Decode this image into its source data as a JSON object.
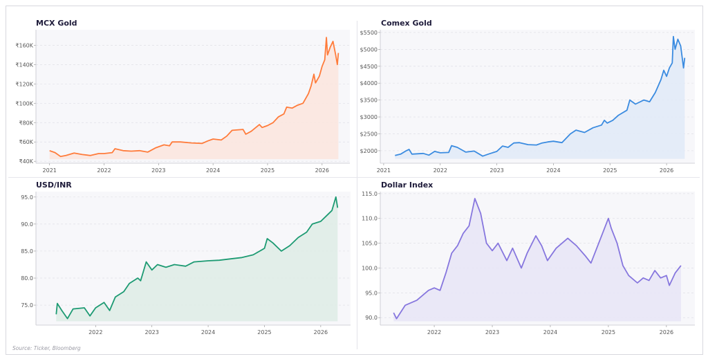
{
  "source": "Source: Ticker, Bloomberg",
  "chart_data": [
    {
      "type": "area",
      "title": "MCX Gold",
      "color": "#ff7b3a",
      "fill": "#fbe6df",
      "xlim": [
        2020.75,
        2026.51
      ],
      "ylim": [
        38,
        176
      ],
      "x_ticks": [
        2021,
        2022,
        2023,
        2024,
        2025,
        2026
      ],
      "x_tick_labels": [
        "2021",
        "2022",
        "2023",
        "2024",
        "2025",
        "2026"
      ],
      "y_ticks": [
        40,
        60,
        80,
        100,
        120,
        140,
        160
      ],
      "y_tick_labels": [
        "₹40K",
        "₹60K",
        "₹80K",
        "₹100K",
        "₹120K",
        "₹140K",
        "₹160K"
      ],
      "unit": "thousand INR",
      "points": [
        [
          2021.0,
          51
        ],
        [
          2021.1,
          49
        ],
        [
          2021.2,
          45
        ],
        [
          2021.3,
          46
        ],
        [
          2021.45,
          48.5
        ],
        [
          2021.6,
          47
        ],
        [
          2021.75,
          46
        ],
        [
          2021.9,
          48
        ],
        [
          2022.0,
          48
        ],
        [
          2022.15,
          49
        ],
        [
          2022.2,
          53
        ],
        [
          2022.35,
          51
        ],
        [
          2022.5,
          50.5
        ],
        [
          2022.65,
          51
        ],
        [
          2022.8,
          49.5
        ],
        [
          2022.95,
          54
        ],
        [
          2023.1,
          57
        ],
        [
          2023.2,
          56
        ],
        [
          2023.25,
          60
        ],
        [
          2023.4,
          60
        ],
        [
          2023.6,
          59
        ],
        [
          2023.8,
          58.5
        ],
        [
          2023.9,
          61
        ],
        [
          2024.0,
          63
        ],
        [
          2024.15,
          62
        ],
        [
          2024.25,
          66
        ],
        [
          2024.35,
          72
        ],
        [
          2024.55,
          73
        ],
        [
          2024.6,
          68
        ],
        [
          2024.7,
          71
        ],
        [
          2024.85,
          78
        ],
        [
          2024.9,
          75
        ],
        [
          2025.0,
          77
        ],
        [
          2025.1,
          80
        ],
        [
          2025.2,
          86
        ],
        [
          2025.3,
          89
        ],
        [
          2025.35,
          96
        ],
        [
          2025.45,
          95
        ],
        [
          2025.55,
          98
        ],
        [
          2025.65,
          100
        ],
        [
          2025.75,
          110
        ],
        [
          2025.8,
          118
        ],
        [
          2025.85,
          130
        ],
        [
          2025.88,
          121
        ],
        [
          2025.95,
          128
        ],
        [
          2026.0,
          138
        ],
        [
          2026.05,
          145
        ],
        [
          2026.08,
          168
        ],
        [
          2026.1,
          150
        ],
        [
          2026.15,
          158
        ],
        [
          2026.2,
          164
        ],
        [
          2026.25,
          150
        ],
        [
          2026.28,
          140
        ],
        [
          2026.3,
          152
        ]
      ]
    },
    {
      "type": "area",
      "title": "Comex Gold",
      "color": "#3a8be0",
      "fill": "#e1eaf7",
      "xlim": [
        2020.94,
        2026.5
      ],
      "ylim": [
        1630,
        5580
      ],
      "x_ticks": [
        2021,
        2022,
        2023,
        2024,
        2025,
        2026
      ],
      "x_tick_labels": [
        "2021",
        "2022",
        "2023",
        "2024",
        "2025",
        "2026"
      ],
      "y_ticks": [
        2000,
        2500,
        3000,
        3500,
        4000,
        4500,
        5000,
        5500
      ],
      "y_tick_labels": [
        "$2000",
        "$2500",
        "$3000",
        "$3500",
        "$4000",
        "$4500",
        "$5000",
        "$5500"
      ],
      "unit": "USD",
      "points": [
        [
          2021.2,
          1860
        ],
        [
          2021.3,
          1900
        ],
        [
          2021.4,
          2000
        ],
        [
          2021.45,
          2040
        ],
        [
          2021.5,
          1900
        ],
        [
          2021.7,
          1920
        ],
        [
          2021.8,
          1870
        ],
        [
          2021.9,
          1980
        ],
        [
          2022.0,
          1940
        ],
        [
          2022.15,
          1950
        ],
        [
          2022.2,
          2150
        ],
        [
          2022.3,
          2100
        ],
        [
          2022.45,
          1960
        ],
        [
          2022.6,
          1990
        ],
        [
          2022.75,
          1840
        ],
        [
          2022.85,
          1900
        ],
        [
          2023.0,
          1980
        ],
        [
          2023.1,
          2140
        ],
        [
          2023.2,
          2100
        ],
        [
          2023.3,
          2230
        ],
        [
          2023.4,
          2240
        ],
        [
          2023.55,
          2180
        ],
        [
          2023.7,
          2170
        ],
        [
          2023.8,
          2230
        ],
        [
          2023.9,
          2260
        ],
        [
          2024.0,
          2280
        ],
        [
          2024.15,
          2240
        ],
        [
          2024.3,
          2500
        ],
        [
          2024.4,
          2610
        ],
        [
          2024.55,
          2540
        ],
        [
          2024.7,
          2680
        ],
        [
          2024.85,
          2760
        ],
        [
          2024.9,
          2900
        ],
        [
          2024.95,
          2820
        ],
        [
          2025.05,
          2900
        ],
        [
          2025.15,
          3050
        ],
        [
          2025.3,
          3200
        ],
        [
          2025.35,
          3500
        ],
        [
          2025.45,
          3380
        ],
        [
          2025.6,
          3500
        ],
        [
          2025.7,
          3450
        ],
        [
          2025.8,
          3720
        ],
        [
          2025.9,
          4100
        ],
        [
          2025.95,
          4380
        ],
        [
          2026.0,
          4200
        ],
        [
          2026.05,
          4450
        ],
        [
          2026.1,
          4600
        ],
        [
          2026.12,
          5380
        ],
        [
          2026.15,
          5000
        ],
        [
          2026.2,
          5300
        ],
        [
          2026.25,
          5100
        ],
        [
          2026.3,
          4450
        ],
        [
          2026.32,
          4750
        ]
      ]
    },
    {
      "type": "area",
      "title": "USD/INR",
      "color": "#1c9a72",
      "fill": "#dfece7",
      "xlim": [
        2020.94,
        2026.53
      ],
      "ylim": [
        71.3,
        96.0
      ],
      "x_ticks": [
        2022,
        2023,
        2024,
        2025,
        2026
      ],
      "x_tick_labels": [
        "2022",
        "2023",
        "2024",
        "2025",
        "2026"
      ],
      "y_ticks": [
        75,
        80,
        85,
        90,
        95
      ],
      "y_tick_labels": [
        "75.0",
        "80.0",
        "85.0",
        "90.0",
        "95.0"
      ],
      "unit": "INR",
      "points": [
        [
          2021.3,
          73.3
        ],
        [
          2021.32,
          75.3
        ],
        [
          2021.4,
          74
        ],
        [
          2021.5,
          72.5
        ],
        [
          2021.6,
          74.3
        ],
        [
          2021.8,
          74.5
        ],
        [
          2021.9,
          73
        ],
        [
          2022.0,
          74.5
        ],
        [
          2022.15,
          75.5
        ],
        [
          2022.25,
          74
        ],
        [
          2022.35,
          76.5
        ],
        [
          2022.5,
          77.5
        ],
        [
          2022.6,
          79
        ],
        [
          2022.75,
          80
        ],
        [
          2022.8,
          79.5
        ],
        [
          2022.9,
          83
        ],
        [
          2023.0,
          81.5
        ],
        [
          2023.1,
          82.5
        ],
        [
          2023.25,
          82
        ],
        [
          2023.4,
          82.5
        ],
        [
          2023.6,
          82.2
        ],
        [
          2023.75,
          83
        ],
        [
          2024.0,
          83.2
        ],
        [
          2024.2,
          83.3
        ],
        [
          2024.35,
          83.5
        ],
        [
          2024.6,
          83.8
        ],
        [
          2024.8,
          84.3
        ],
        [
          2025.0,
          85.5
        ],
        [
          2025.05,
          87.3
        ],
        [
          2025.15,
          86.5
        ],
        [
          2025.3,
          85
        ],
        [
          2025.45,
          86
        ],
        [
          2025.6,
          87.5
        ],
        [
          2025.75,
          88.5
        ],
        [
          2025.85,
          90
        ],
        [
          2026.0,
          90.5
        ],
        [
          2026.1,
          91.5
        ],
        [
          2026.2,
          92.5
        ],
        [
          2026.27,
          95
        ],
        [
          2026.3,
          93
        ]
      ]
    },
    {
      "type": "area",
      "title": "Dollar Index",
      "color": "#8676de",
      "fill": "#e8e6f6",
      "xlim": [
        2021.07,
        2026.49
      ],
      "ylim": [
        88.5,
        115.4
      ],
      "x_ticks": [
        2022,
        2023,
        2024,
        2025,
        2026
      ],
      "x_tick_labels": [
        "2022",
        "2023",
        "2024",
        "2025",
        "2026"
      ],
      "y_ticks": [
        90,
        95,
        100,
        105,
        110,
        115
      ],
      "y_tick_labels": [
        "90.0",
        "95.0",
        "100.0",
        "105.0",
        "110.0",
        "115.0"
      ],
      "unit": "index",
      "points": [
        [
          2021.3,
          91
        ],
        [
          2021.35,
          89.8
        ],
        [
          2021.5,
          92.5
        ],
        [
          2021.7,
          93.5
        ],
        [
          2021.9,
          95.5
        ],
        [
          2022.0,
          96
        ],
        [
          2022.1,
          95.5
        ],
        [
          2022.2,
          99
        ],
        [
          2022.3,
          103
        ],
        [
          2022.4,
          104.5
        ],
        [
          2022.5,
          107
        ],
        [
          2022.6,
          108.5
        ],
        [
          2022.7,
          114
        ],
        [
          2022.8,
          111
        ],
        [
          2022.9,
          105
        ],
        [
          2023.0,
          103.5
        ],
        [
          2023.1,
          105
        ],
        [
          2023.25,
          101.5
        ],
        [
          2023.35,
          104
        ],
        [
          2023.5,
          100
        ],
        [
          2023.6,
          103
        ],
        [
          2023.75,
          106.5
        ],
        [
          2023.85,
          104.5
        ],
        [
          2023.95,
          101.5
        ],
        [
          2024.1,
          104
        ],
        [
          2024.3,
          106
        ],
        [
          2024.45,
          104.5
        ],
        [
          2024.6,
          102.5
        ],
        [
          2024.7,
          101
        ],
        [
          2024.8,
          104
        ],
        [
          2024.9,
          107
        ],
        [
          2025.0,
          110
        ],
        [
          2025.05,
          108
        ],
        [
          2025.15,
          105
        ],
        [
          2025.25,
          100.5
        ],
        [
          2025.35,
          98.5
        ],
        [
          2025.5,
          97
        ],
        [
          2025.6,
          98
        ],
        [
          2025.7,
          97.5
        ],
        [
          2025.8,
          99.5
        ],
        [
          2025.9,
          98
        ],
        [
          2026.0,
          98.5
        ],
        [
          2026.05,
          96.5
        ],
        [
          2026.15,
          99
        ],
        [
          2026.25,
          100.5
        ]
      ]
    }
  ]
}
